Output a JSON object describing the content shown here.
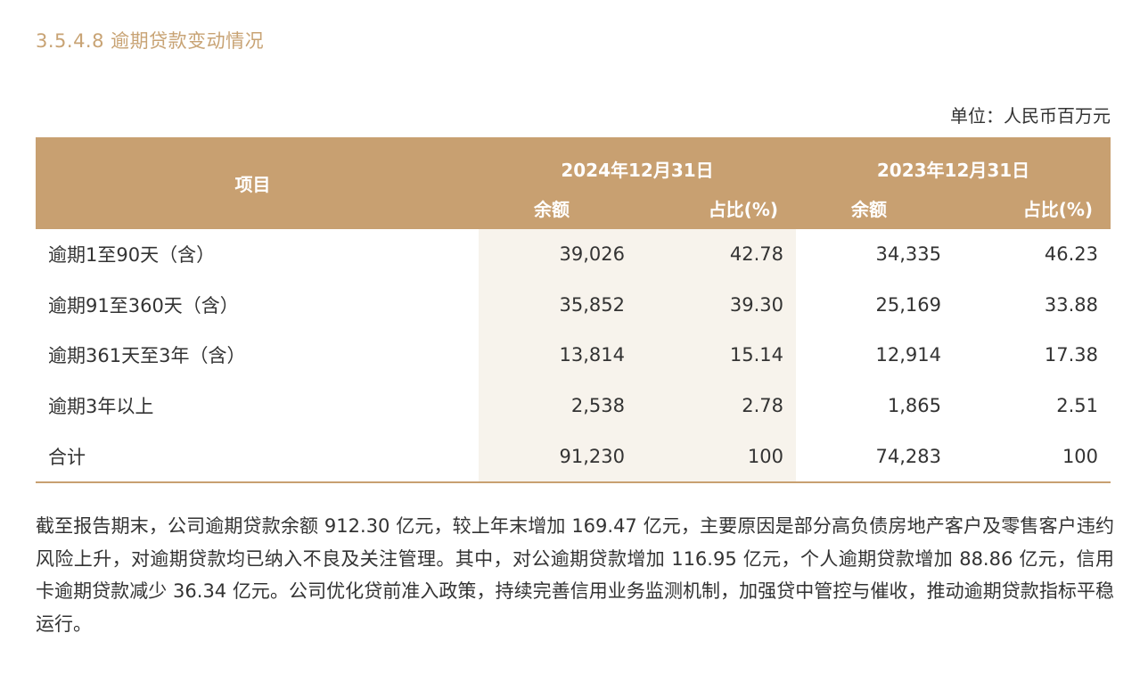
{
  "section_title": "3.5.4.8 逾期贷款变动情况",
  "unit": "单位：人民币百万元",
  "table": {
    "header": {
      "item_label": "项目",
      "periods": [
        {
          "label": "2024年12月31日",
          "amount_label": "余额",
          "ratio_label": "占比(%)"
        },
        {
          "label": "2023年12月31日",
          "amount_label": "余额",
          "ratio_label": "占比(%)"
        }
      ]
    },
    "rows": [
      {
        "item": "逾期1至90天（含）",
        "cells": [
          "39,026",
          "42.78",
          "34,335",
          "46.23"
        ]
      },
      {
        "item": "逾期91至360天（含）",
        "cells": [
          "35,852",
          "39.30",
          "25,169",
          "33.88"
        ]
      },
      {
        "item": "逾期361天至3年（含）",
        "cells": [
          "13,814",
          "15.14",
          "12,914",
          "17.38"
        ]
      },
      {
        "item": "逾期3年以上",
        "cells": [
          "2,538",
          "2.78",
          "1,865",
          "2.51"
        ]
      },
      {
        "item": "合计",
        "cells": [
          "91,230",
          "100",
          "74,283",
          "100"
        ]
      }
    ]
  },
  "paragraph": "截至报告期末，公司逾期贷款余额 912.30 亿元，较上年末增加 169.47 亿元，主要原因是部分高负债房地产客户及零售客户违约风险上升，对逾期贷款均已纳入不良及关注管理。其中，对公逾期贷款增加 116.95 亿元，个人逾期贷款增加 88.86 亿元，信用卡逾期贷款减少 36.34 亿元。公司优化贷前准入政策，持续完善信用业务监测机制，加强贷中管控与催收，推动逾期贷款指标平稳运行。",
  "colors": {
    "title": "#c8a374",
    "header_bg": "#c8a071",
    "header_text": "#ffffff",
    "shaded_column_bg": "#f7f3ec",
    "body_text": "#333333"
  }
}
